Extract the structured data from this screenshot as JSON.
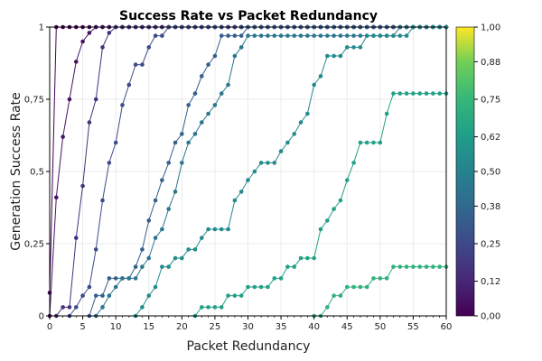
{
  "chart_data": {
    "type": "line",
    "title": "Success Rate vs Packet Redundancy",
    "xlabel": "Packet Redundancy",
    "ylabel": "Generation Success Rate",
    "xlim": [
      0,
      60
    ],
    "ylim": [
      0,
      1
    ],
    "x_ticks": [
      0,
      5,
      10,
      15,
      20,
      25,
      30,
      35,
      40,
      45,
      50,
      55,
      60
    ],
    "y_ticks": [
      0,
      0.25,
      0.5,
      0.75,
      1
    ],
    "y_tick_labels": [
      "0",
      "0,25",
      "0,5",
      "0,75",
      "1"
    ],
    "grid": true,
    "colorscale": "viridis",
    "colorbar": {
      "range": [
        0,
        1
      ],
      "ticks": [
        0,
        0.12,
        0.25,
        0.38,
        0.5,
        0.62,
        0.75,
        0.88,
        1
      ],
      "tick_labels": [
        "0,00",
        "0,12",
        "0,25",
        "0,38",
        "0,50",
        "0,62",
        "0,75",
        "0,88",
        "1,00"
      ]
    },
    "series": [
      {
        "color_value": 0.0,
        "x_start": 0,
        "values": [
          0.08,
          1,
          1,
          1,
          1,
          1,
          1,
          1,
          1,
          1,
          1,
          1,
          1,
          1,
          1,
          1,
          1,
          1,
          1,
          1,
          1,
          1,
          1,
          1,
          1,
          1,
          1,
          1,
          1,
          1,
          1,
          1,
          1,
          1,
          1,
          1,
          1,
          1,
          1,
          1,
          1,
          1,
          1,
          1,
          1,
          1,
          1,
          1,
          1,
          1,
          1,
          1,
          1,
          1,
          1,
          1,
          1,
          1,
          1,
          1,
          1
        ]
      },
      {
        "color_value": 0.06,
        "x_start": 0,
        "values": [
          0,
          0.41,
          0.62,
          0.75,
          0.88,
          0.95,
          0.98,
          1,
          1,
          1,
          1,
          1,
          1,
          1,
          1,
          1,
          1,
          1,
          1,
          1,
          1,
          1,
          1,
          1,
          1,
          1,
          1,
          1,
          1,
          1,
          1,
          1,
          1,
          1,
          1,
          1,
          1,
          1,
          1,
          1,
          1,
          1,
          1,
          1,
          1,
          1,
          1,
          1,
          1,
          1,
          1,
          1,
          1,
          1,
          1,
          1,
          1,
          1,
          1,
          1,
          1
        ]
      },
      {
        "color_value": 0.16,
        "x_start": 1,
        "values": [
          0,
          0.03,
          0.03,
          0.27,
          0.45,
          0.67,
          0.75,
          0.93,
          0.98,
          1,
          1,
          1,
          1,
          1,
          1,
          1,
          1,
          1,
          1,
          1,
          1,
          1,
          1,
          1,
          1,
          1,
          1,
          1,
          1,
          1,
          1,
          1,
          1,
          1,
          1,
          1,
          1,
          1,
          1,
          1,
          1,
          1,
          1,
          1,
          1,
          1,
          1,
          1,
          1,
          1,
          1,
          1,
          1,
          1,
          1,
          1,
          1,
          1,
          1,
          1
        ]
      },
      {
        "color_value": 0.26,
        "x_start": 3,
        "values": [
          0,
          0.03,
          0.07,
          0.1,
          0.23,
          0.4,
          0.53,
          0.6,
          0.73,
          0.8,
          0.87,
          0.87,
          0.93,
          0.97,
          0.97,
          1,
          1,
          1,
          1,
          1,
          1,
          1,
          1,
          1,
          1,
          1,
          1,
          1,
          1,
          1,
          1,
          1,
          1,
          1,
          1,
          1,
          1,
          1,
          1,
          1,
          1,
          1,
          1,
          1,
          1,
          1,
          1,
          1,
          1,
          1,
          1,
          1,
          1,
          1,
          1,
          1,
          1,
          1
        ]
      },
      {
        "color_value": 0.34,
        "x_start": 6,
        "values": [
          0,
          0.07,
          0.07,
          0.13,
          0.13,
          0.13,
          0.13,
          0.17,
          0.23,
          0.33,
          0.4,
          0.47,
          0.53,
          0.6,
          0.63,
          0.73,
          0.77,
          0.83,
          0.87,
          0.9,
          0.97,
          0.97,
          0.97,
          0.97,
          1,
          1,
          1,
          1,
          1,
          1,
          1,
          1,
          1,
          1,
          1,
          1,
          1,
          1,
          1,
          1,
          1,
          1,
          1,
          1,
          1,
          1,
          1,
          1,
          1,
          1,
          1,
          1,
          1,
          1,
          1
        ]
      },
      {
        "color_value": 0.44,
        "x_start": 7,
        "values": [
          0,
          0.03,
          0.07,
          0.1,
          0.13,
          0.13,
          0.13,
          0.17,
          0.2,
          0.27,
          0.3,
          0.37,
          0.43,
          0.53,
          0.6,
          0.63,
          0.67,
          0.7,
          0.73,
          0.77,
          0.8,
          0.9,
          0.93,
          0.97,
          0.97,
          0.97,
          0.97,
          0.97,
          0.97,
          0.97,
          0.97,
          0.97,
          0.97,
          0.97,
          0.97,
          0.97,
          0.97,
          0.97,
          0.97,
          0.97,
          0.97,
          0.97,
          0.97,
          0.97,
          0.97,
          0.97,
          1,
          1,
          1,
          1,
          1,
          1,
          1,
          1
        ]
      },
      {
        "color_value": 0.54,
        "x_start": 13,
        "values": [
          0,
          0.03,
          0.07,
          0.1,
          0.17,
          0.17,
          0.2,
          0.2,
          0.23,
          0.23,
          0.27,
          0.3,
          0.3,
          0.3,
          0.3,
          0.4,
          0.43,
          0.47,
          0.5,
          0.53,
          0.53,
          0.53,
          0.57,
          0.6,
          0.63,
          0.67,
          0.7,
          0.8,
          0.83,
          0.9,
          0.9,
          0.9,
          0.93,
          0.93,
          0.93,
          0.97,
          0.97,
          0.97,
          0.97,
          0.97,
          0.97,
          0.97,
          1,
          1,
          1,
          1,
          1,
          1
        ]
      },
      {
        "color_value": 0.64,
        "x_start": 22,
        "values": [
          0,
          0.03,
          0.03,
          0.03,
          0.03,
          0.07,
          0.07,
          0.07,
          0.1,
          0.1,
          0.1,
          0.1,
          0.13,
          0.13,
          0.17,
          0.17,
          0.2,
          0.2,
          0.2,
          0.3,
          0.33,
          0.37,
          0.4,
          0.47,
          0.53,
          0.6,
          0.6,
          0.6,
          0.6,
          0.7,
          0.77,
          0.77,
          0.77,
          0.77,
          0.77,
          0.77,
          0.77,
          0.77,
          0.77
        ]
      },
      {
        "color_value": 0.72,
        "x_start": 40,
        "values": [
          0,
          0,
          0.03,
          0.07,
          0.07,
          0.1,
          0.1,
          0.1,
          0.1,
          0.13,
          0.13,
          0.13,
          0.17,
          0.17,
          0.17,
          0.17,
          0.17,
          0.17,
          0.17,
          0.17,
          0.17
        ]
      }
    ]
  }
}
